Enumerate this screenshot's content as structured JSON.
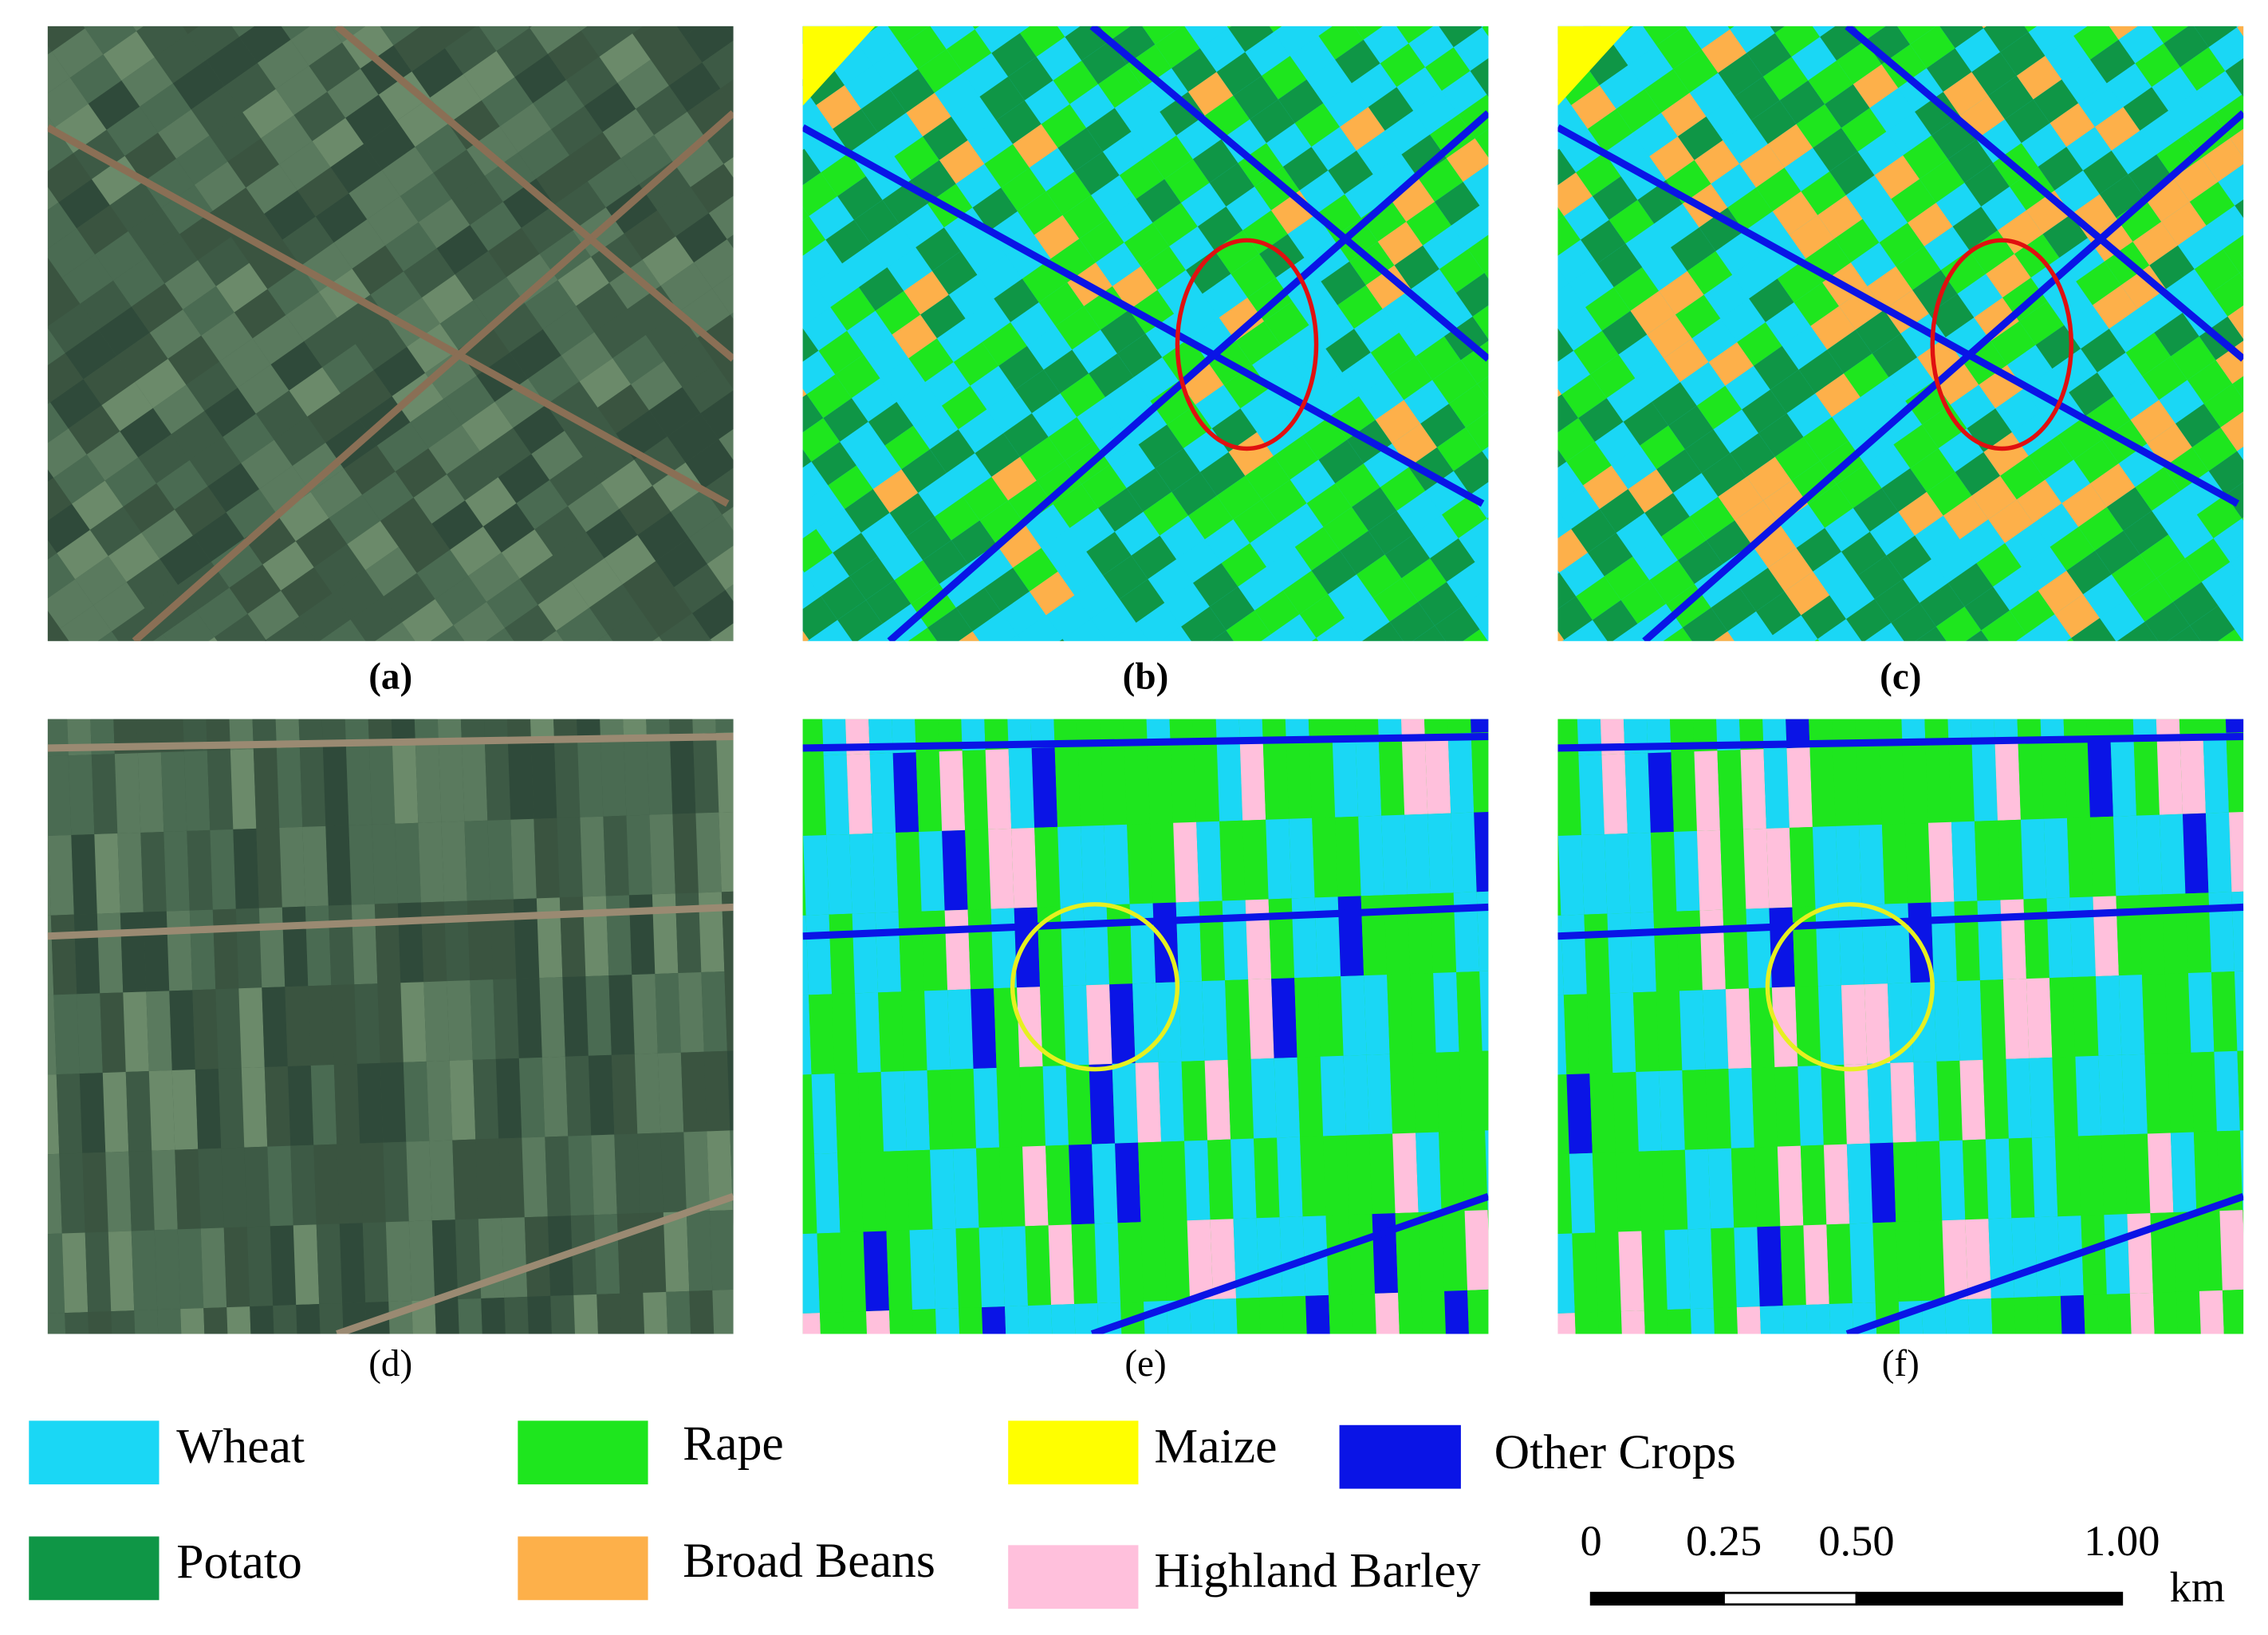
{
  "panels": [
    {
      "label": "(a)"
    },
    {
      "label": "(b)"
    },
    {
      "label": "(c)"
    },
    {
      "label": "(d)"
    },
    {
      "label": "(e)"
    },
    {
      "label": "(f)"
    }
  ],
  "legend": [
    {
      "label": "Wheat",
      "color": "#1ad7f5"
    },
    {
      "label": "Rape",
      "color": "#1ee61e"
    },
    {
      "label": "Maize",
      "color": "#ffff00"
    },
    {
      "label": "Other Crops",
      "color": "#0a14e6"
    },
    {
      "label": "Potato",
      "color": "#0f9646"
    },
    {
      "label": "Broad Beans",
      "color": "#fdb04a"
    },
    {
      "label": "Highland Barley",
      "color": "#ffc0dc"
    }
  ],
  "scale_bar": {
    "ticks": [
      0,
      0.25,
      {
        "value": 0.5,
        "label": "0.50"
      },
      {
        "value": 1,
        "label": "1.00"
      }
    ],
    "unit": "km"
  }
}
